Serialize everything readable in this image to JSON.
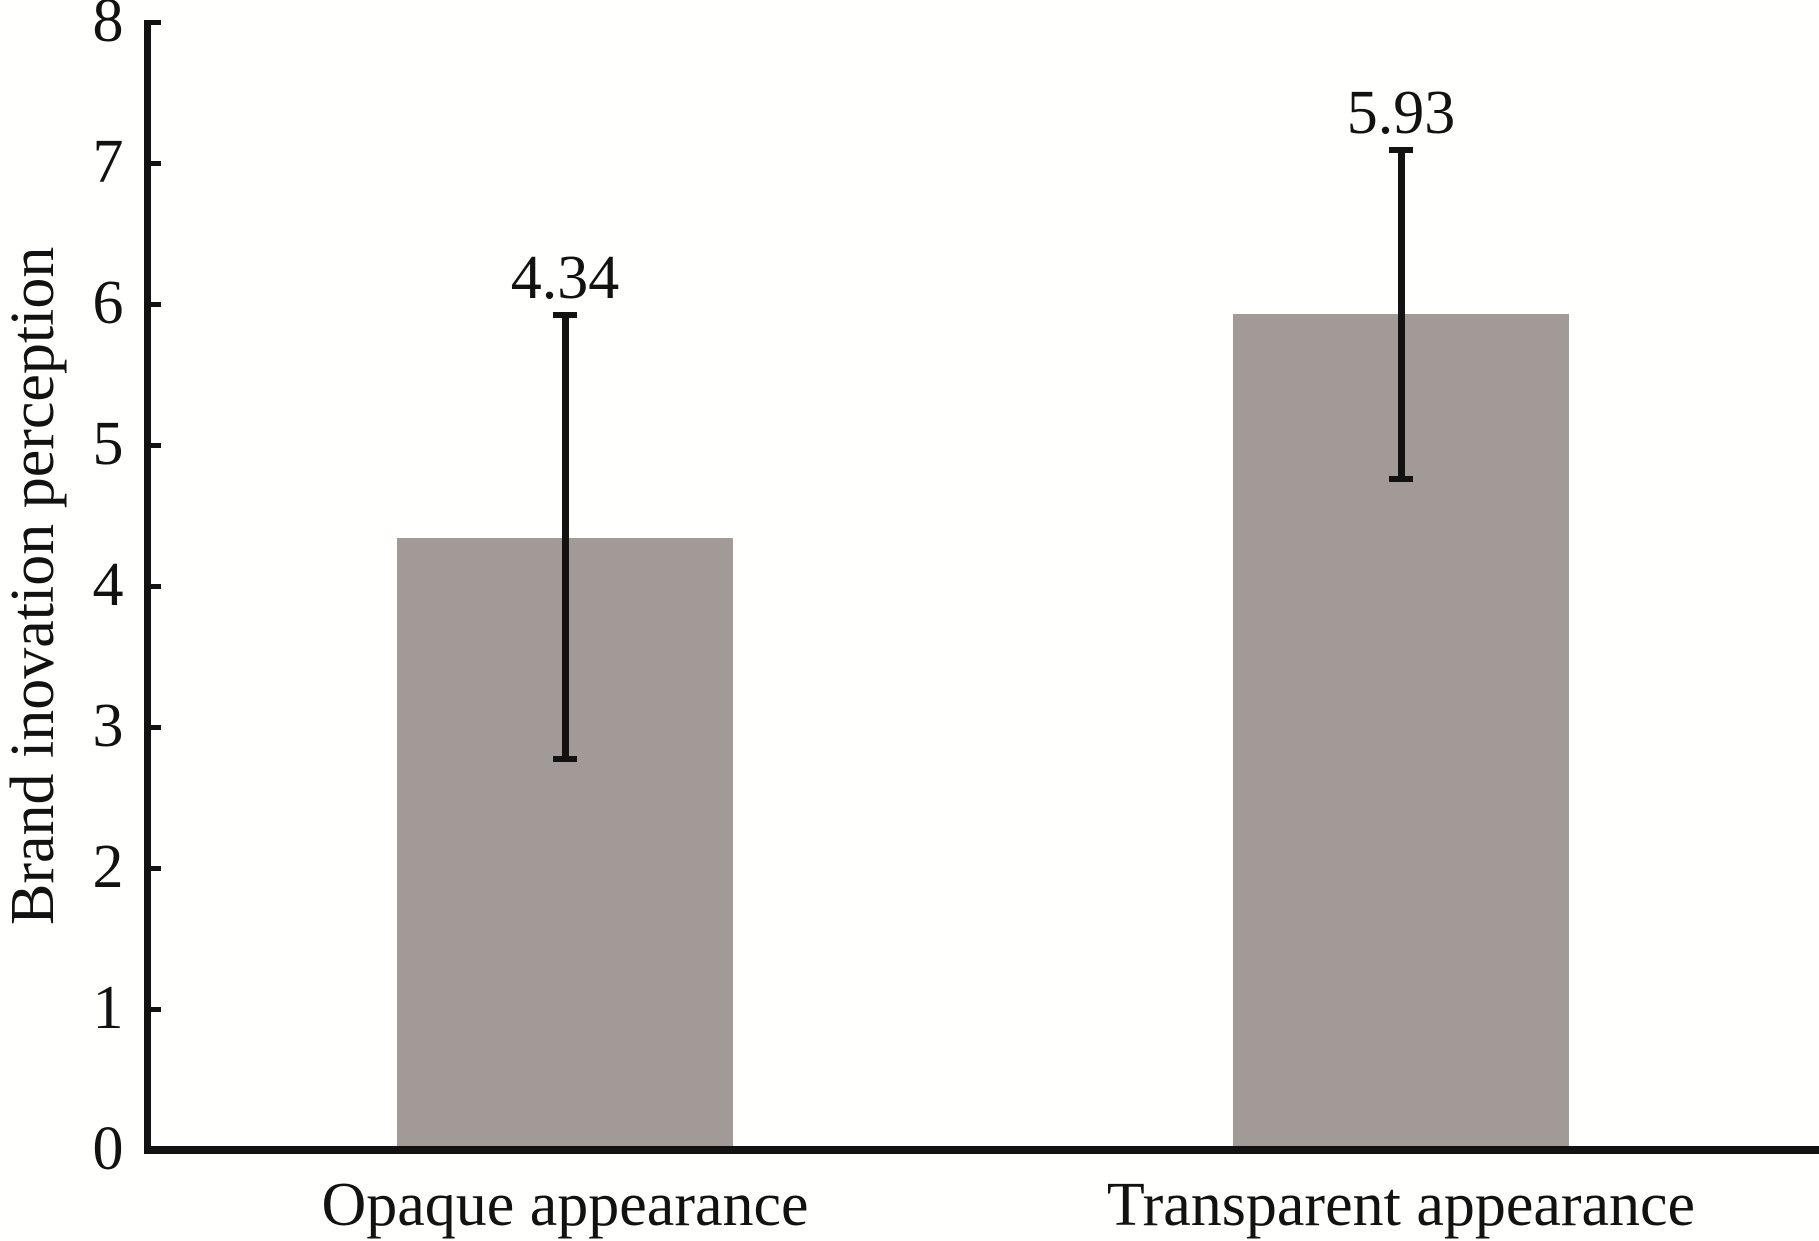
{
  "chart_data": {
    "type": "bar",
    "title": "",
    "xlabel": "",
    "ylabel": "Brand inovation perception",
    "categories": [
      "Opaque appearance",
      "Transparent appearance"
    ],
    "values": [
      4.34,
      5.93
    ],
    "data_labels": [
      "4.34",
      "5.93"
    ],
    "error": {
      "upper": [
        1.58,
        1.16
      ],
      "lower": [
        1.57,
        1.17
      ]
    },
    "ylim": [
      0,
      8
    ],
    "yticks": [
      0,
      1,
      2,
      3,
      4,
      5,
      6,
      7,
      8
    ],
    "grid": false,
    "legend_position": "none",
    "bar_color": "#a29a97",
    "axis_color": "#121212",
    "background_color": "#fffffe"
  }
}
